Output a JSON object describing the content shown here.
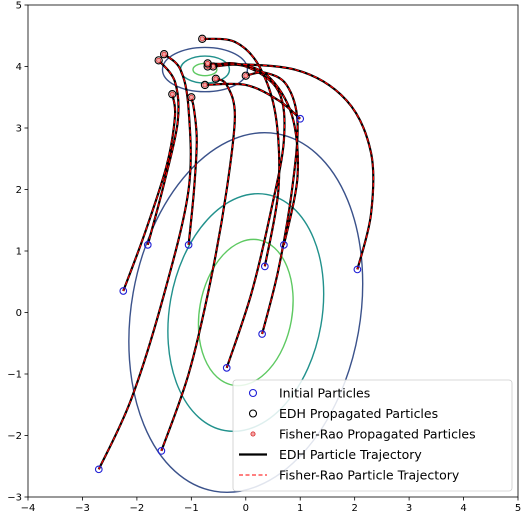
{
  "chart_data": {
    "type": "scatter",
    "title": "",
    "xlabel": "",
    "ylabel": "",
    "xlim": [
      -4,
      5
    ],
    "ylim": [
      -3,
      5
    ],
    "x_ticks": [
      "−4",
      "−3",
      "−2",
      "−1",
      "0",
      "1",
      "2",
      "3",
      "4",
      "5"
    ],
    "y_ticks": [
      "−3",
      "−2",
      "−1",
      "0",
      "1",
      "2",
      "3",
      "4",
      "5"
    ],
    "grid": false,
    "legend_position": "bottom-right",
    "legend": [
      {
        "label": "Initial Particles",
        "kind": "open-circle",
        "color": "#1f1fd6"
      },
      {
        "label": "EDH Propagated Particles",
        "kind": "open-circle",
        "color": "#000000"
      },
      {
        "label": "Fisher-Rao Propagated Particles",
        "kind": "small-circle",
        "color": "#d62728"
      },
      {
        "label": "EDH Particle Trajectory",
        "kind": "solid-line",
        "color": "#000000"
      },
      {
        "label": "Fisher-Rao Particle Trajectory",
        "kind": "dashed-line",
        "color": "#ff0000"
      }
    ],
    "prior_contours": {
      "center": [
        0.0,
        0.0
      ],
      "levels": [
        {
          "rx": 0.85,
          "ry": 1.2,
          "angle": 10,
          "color": "#5ec962"
        },
        {
          "rx": 1.4,
          "ry": 1.95,
          "angle": 10,
          "color": "#21918c"
        },
        {
          "rx": 2.1,
          "ry": 2.95,
          "angle": 10,
          "color": "#3b528b"
        }
      ]
    },
    "posterior_contours": {
      "center": [
        -0.75,
        3.95
      ],
      "levels": [
        {
          "rx": 0.22,
          "ry": 0.1,
          "angle": 0,
          "color": "#5ec962"
        },
        {
          "rx": 0.45,
          "ry": 0.22,
          "angle": 0,
          "color": "#21918c"
        },
        {
          "rx": 0.78,
          "ry": 0.36,
          "angle": 0,
          "color": "#3b528b"
        }
      ]
    },
    "particles": [
      {
        "initial": [
          -2.7,
          -2.55
        ],
        "final": [
          -1.5,
          4.2
        ],
        "path": [
          [
            -2.7,
            -2.55
          ],
          [
            -2.1,
            -1.4
          ],
          [
            -1.5,
            0.3
          ],
          [
            -1.05,
            2.0
          ],
          [
            -1.05,
            3.3
          ],
          [
            -1.2,
            3.95
          ],
          [
            -1.5,
            4.2
          ]
        ]
      },
      {
        "initial": [
          -1.55,
          -2.25
        ],
        "final": [
          -0.55,
          3.8
        ],
        "path": [
          [
            -1.55,
            -2.25
          ],
          [
            -1.05,
            -1.0
          ],
          [
            -0.65,
            0.5
          ],
          [
            -0.35,
            2.0
          ],
          [
            -0.2,
            3.2
          ],
          [
            -0.35,
            3.7
          ],
          [
            -0.55,
            3.8
          ]
        ]
      },
      {
        "initial": [
          -0.35,
          -0.9
        ],
        "final": [
          -0.6,
          4.0
        ],
        "path": [
          [
            -0.35,
            -0.9
          ],
          [
            0.1,
            0.3
          ],
          [
            0.45,
            1.6
          ],
          [
            0.7,
            2.8
          ],
          [
            0.6,
            3.6
          ],
          [
            0.0,
            4.0
          ],
          [
            -0.6,
            4.0
          ]
        ]
      },
      {
        "initial": [
          0.3,
          -0.35
        ],
        "final": [
          0.0,
          3.85
        ],
        "path": [
          [
            0.3,
            -0.35
          ],
          [
            0.6,
            0.7
          ],
          [
            0.85,
            2.0
          ],
          [
            0.95,
            3.1
          ],
          [
            0.75,
            3.7
          ],
          [
            0.35,
            3.9
          ],
          [
            0.0,
            3.85
          ]
        ]
      },
      {
        "initial": [
          0.35,
          0.75
        ],
        "final": [
          -0.8,
          4.45
        ],
        "path": [
          [
            0.35,
            0.75
          ],
          [
            0.6,
            2.0
          ],
          [
            0.55,
            3.2
          ],
          [
            0.25,
            4.0
          ],
          [
            -0.2,
            4.4
          ],
          [
            -0.8,
            4.45
          ]
        ]
      },
      {
        "initial": [
          0.7,
          1.1
        ],
        "final": [
          -0.7,
          4.0
        ],
        "path": [
          [
            0.7,
            1.1
          ],
          [
            0.95,
            2.2
          ],
          [
            0.85,
            3.2
          ],
          [
            0.4,
            3.85
          ],
          [
            -0.2,
            4.05
          ],
          [
            -0.7,
            4.0
          ]
        ]
      },
      {
        "initial": [
          2.05,
          0.7
        ],
        "final": [
          -0.7,
          4.05
        ],
        "path": [
          [
            2.05,
            0.7
          ],
          [
            2.3,
            1.6
          ],
          [
            2.3,
            2.6
          ],
          [
            1.85,
            3.45
          ],
          [
            0.9,
            3.95
          ],
          [
            -0.7,
            4.05
          ]
        ]
      },
      {
        "initial": [
          1.0,
          3.15
        ],
        "final": [
          -0.75,
          3.7
        ],
        "path": [
          [
            1.0,
            3.15
          ],
          [
            0.6,
            3.45
          ],
          [
            0.0,
            3.7
          ],
          [
            -0.75,
            3.7
          ]
        ]
      },
      {
        "initial": [
          -1.8,
          1.1
        ],
        "final": [
          -1.6,
          4.1
        ],
        "path": [
          [
            -1.8,
            1.1
          ],
          [
            -1.5,
            2.1
          ],
          [
            -1.25,
            3.1
          ],
          [
            -1.3,
            3.75
          ],
          [
            -1.6,
            4.1
          ]
        ]
      },
      {
        "initial": [
          -2.25,
          0.35
        ],
        "final": [
          -1.35,
          3.55
        ],
        "path": [
          [
            -2.25,
            0.35
          ],
          [
            -1.85,
            1.3
          ],
          [
            -1.45,
            2.4
          ],
          [
            -1.3,
            3.2
          ],
          [
            -1.35,
            3.55
          ]
        ]
      },
      {
        "initial": [
          -1.05,
          1.1
        ],
        "final": [
          -1.0,
          3.5
        ],
        "path": [
          [
            -1.05,
            1.1
          ],
          [
            -0.95,
            2.0
          ],
          [
            -0.9,
            2.8
          ],
          [
            -0.95,
            3.3
          ],
          [
            -1.0,
            3.5
          ]
        ]
      }
    ]
  }
}
